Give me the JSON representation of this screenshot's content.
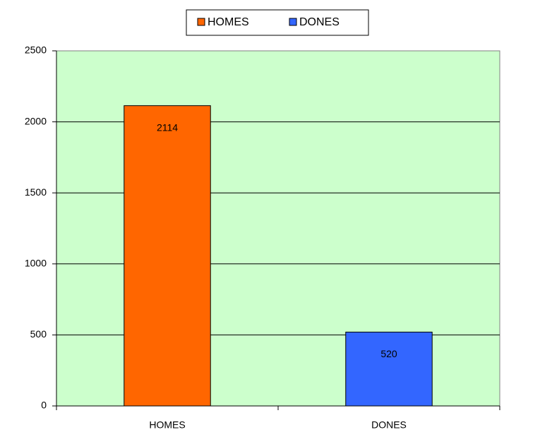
{
  "chart_data": {
    "type": "bar",
    "categories": [
      "HOMES",
      "DONES"
    ],
    "series": [
      {
        "name": "HOMES",
        "color": "#ff6600",
        "values": [
          2114,
          null
        ]
      },
      {
        "name": "DONES",
        "color": "#3366ff",
        "values": [
          null,
          520
        ]
      }
    ],
    "ylim": [
      0,
      2500
    ],
    "yticks": [
      0,
      500,
      1000,
      1500,
      2000,
      2500
    ],
    "grid": true,
    "legend": "top",
    "plot_background": "#ccffcc"
  }
}
